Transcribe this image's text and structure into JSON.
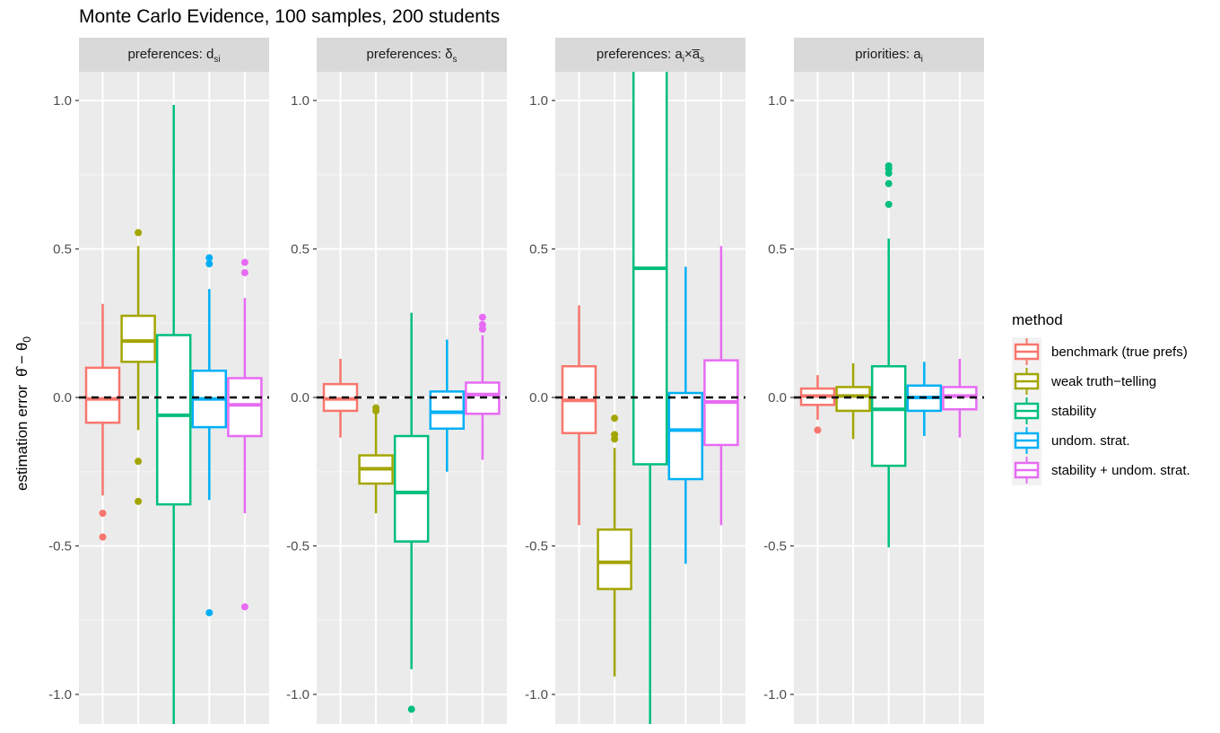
{
  "chart_data": {
    "type": "box",
    "title": "Monte Carlo Evidence, 100 samples, 200 students",
    "ylabel": "estimation error",
    "ylim": [
      -1.1,
      1.1
    ],
    "y_ticks": [
      1.0,
      0.5,
      0.0,
      -0.5,
      -1.0
    ],
    "y_tick_labels": [
      "1.0",
      "0.5",
      "0.0",
      "-0.5",
      "-1.0"
    ],
    "reference_line": 0,
    "legend": {
      "title": "method",
      "position": "right",
      "items": [
        {
          "label": "benchmark (true prefs)",
          "color": "#F8766D"
        },
        {
          "label": "weak truth−telling",
          "color": "#A3A500"
        },
        {
          "label": "stability",
          "color": "#00BF7D"
        },
        {
          "label": "undom. strat.",
          "color": "#00B0F6"
        },
        {
          "label": "stability + undom. strat.",
          "color": "#E76BF3"
        }
      ]
    },
    "panels": [
      {
        "strip": {
          "main": "preferences: d",
          "sub": "si"
        },
        "boxes": [
          {
            "method": "benchmark (true prefs)",
            "whisker_low": -0.33,
            "q1": -0.085,
            "median": -0.005,
            "q3": 0.1,
            "whisker_high": 0.315,
            "outliers": [
              -0.39,
              -0.47
            ]
          },
          {
            "method": "weak truth−telling",
            "whisker_low": -0.11,
            "q1": 0.12,
            "median": 0.19,
            "q3": 0.275,
            "whisker_high": 0.51,
            "outliers": [
              0.555,
              -0.215,
              -0.35
            ]
          },
          {
            "method": "stability",
            "whisker_low": -1.2,
            "q1": -0.36,
            "median": -0.06,
            "q3": 0.21,
            "whisker_high": 0.985,
            "outliers": []
          },
          {
            "method": "undom. strat.",
            "whisker_low": -0.345,
            "q1": -0.1,
            "median": -0.005,
            "q3": 0.09,
            "whisker_high": 0.365,
            "outliers": [
              0.47,
              0.45,
              -0.725
            ]
          },
          {
            "method": "stability + undom. strat.",
            "whisker_low": -0.39,
            "q1": -0.13,
            "median": -0.025,
            "q3": 0.065,
            "whisker_high": 0.335,
            "outliers": [
              0.455,
              0.42,
              -0.705
            ]
          }
        ]
      },
      {
        "strip": {
          "main": "preferences: δ",
          "sub": "s"
        },
        "boxes": [
          {
            "method": "benchmark (true prefs)",
            "whisker_low": -0.135,
            "q1": -0.045,
            "median": -0.005,
            "q3": 0.045,
            "whisker_high": 0.13,
            "outliers": []
          },
          {
            "method": "weak truth−telling",
            "whisker_low": -0.39,
            "q1": -0.29,
            "median": -0.24,
            "q3": -0.195,
            "whisker_high": -0.05,
            "outliers": [
              -0.035,
              -0.045
            ]
          },
          {
            "method": "stability",
            "whisker_low": -0.915,
            "q1": -0.485,
            "median": -0.32,
            "q3": -0.13,
            "whisker_high": 0.285,
            "outliers": [
              -1.05
            ]
          },
          {
            "method": "undom. strat.",
            "whisker_low": -0.25,
            "q1": -0.105,
            "median": -0.05,
            "q3": 0.02,
            "whisker_high": 0.195,
            "outliers": []
          },
          {
            "method": "stability + undom. strat.",
            "whisker_low": -0.21,
            "q1": -0.055,
            "median": 0.01,
            "q3": 0.05,
            "whisker_high": 0.21,
            "outliers": [
              0.27,
              0.245,
              0.23
            ]
          }
        ]
      },
      {
        "strip": {
          "main": "preferences: a",
          "sub": "i",
          "mid": "×a̅",
          "sub2": "s"
        },
        "boxes": [
          {
            "method": "benchmark (true prefs)",
            "whisker_low": -0.43,
            "q1": -0.12,
            "median": -0.01,
            "q3": 0.105,
            "whisker_high": 0.31,
            "outliers": []
          },
          {
            "method": "weak truth−telling",
            "whisker_low": -0.94,
            "q1": -0.645,
            "median": -0.555,
            "q3": -0.445,
            "whisker_high": -0.17,
            "outliers": [
              -0.07,
              -0.125,
              -0.14
            ]
          },
          {
            "method": "stability",
            "whisker_low": -1.2,
            "q1": -0.225,
            "median": 0.435,
            "q3": 1.2,
            "whisker_high": 1.2,
            "outliers": []
          },
          {
            "method": "undom. strat.",
            "whisker_low": -0.56,
            "q1": -0.275,
            "median": -0.11,
            "q3": 0.015,
            "whisker_high": 0.44,
            "outliers": []
          },
          {
            "method": "stability + undom. strat.",
            "whisker_low": -0.43,
            "q1": -0.16,
            "median": -0.015,
            "q3": 0.125,
            "whisker_high": 0.51,
            "outliers": []
          }
        ]
      },
      {
        "strip": {
          "main": "priorities: a",
          "sub": "i"
        },
        "boxes": [
          {
            "method": "benchmark (true prefs)",
            "whisker_low": -0.075,
            "q1": -0.025,
            "median": 0.005,
            "q3": 0.03,
            "whisker_high": 0.075,
            "outliers": [
              -0.11
            ]
          },
          {
            "method": "weak truth−telling",
            "whisker_low": -0.14,
            "q1": -0.045,
            "median": 0.005,
            "q3": 0.035,
            "whisker_high": 0.115,
            "outliers": []
          },
          {
            "method": "stability",
            "whisker_low": -0.505,
            "q1": -0.23,
            "median": -0.04,
            "q3": 0.105,
            "whisker_high": 0.535,
            "outliers": [
              0.78,
              0.77,
              0.755,
              0.72,
              0.65
            ]
          },
          {
            "method": "undom. strat.",
            "whisker_low": -0.13,
            "q1": -0.045,
            "median": 0.0,
            "q3": 0.04,
            "whisker_high": 0.12,
            "outliers": []
          },
          {
            "method": "stability + undom. strat.",
            "whisker_low": -0.135,
            "q1": -0.04,
            "median": 0.005,
            "q3": 0.035,
            "whisker_high": 0.13,
            "outliers": []
          }
        ]
      }
    ]
  }
}
